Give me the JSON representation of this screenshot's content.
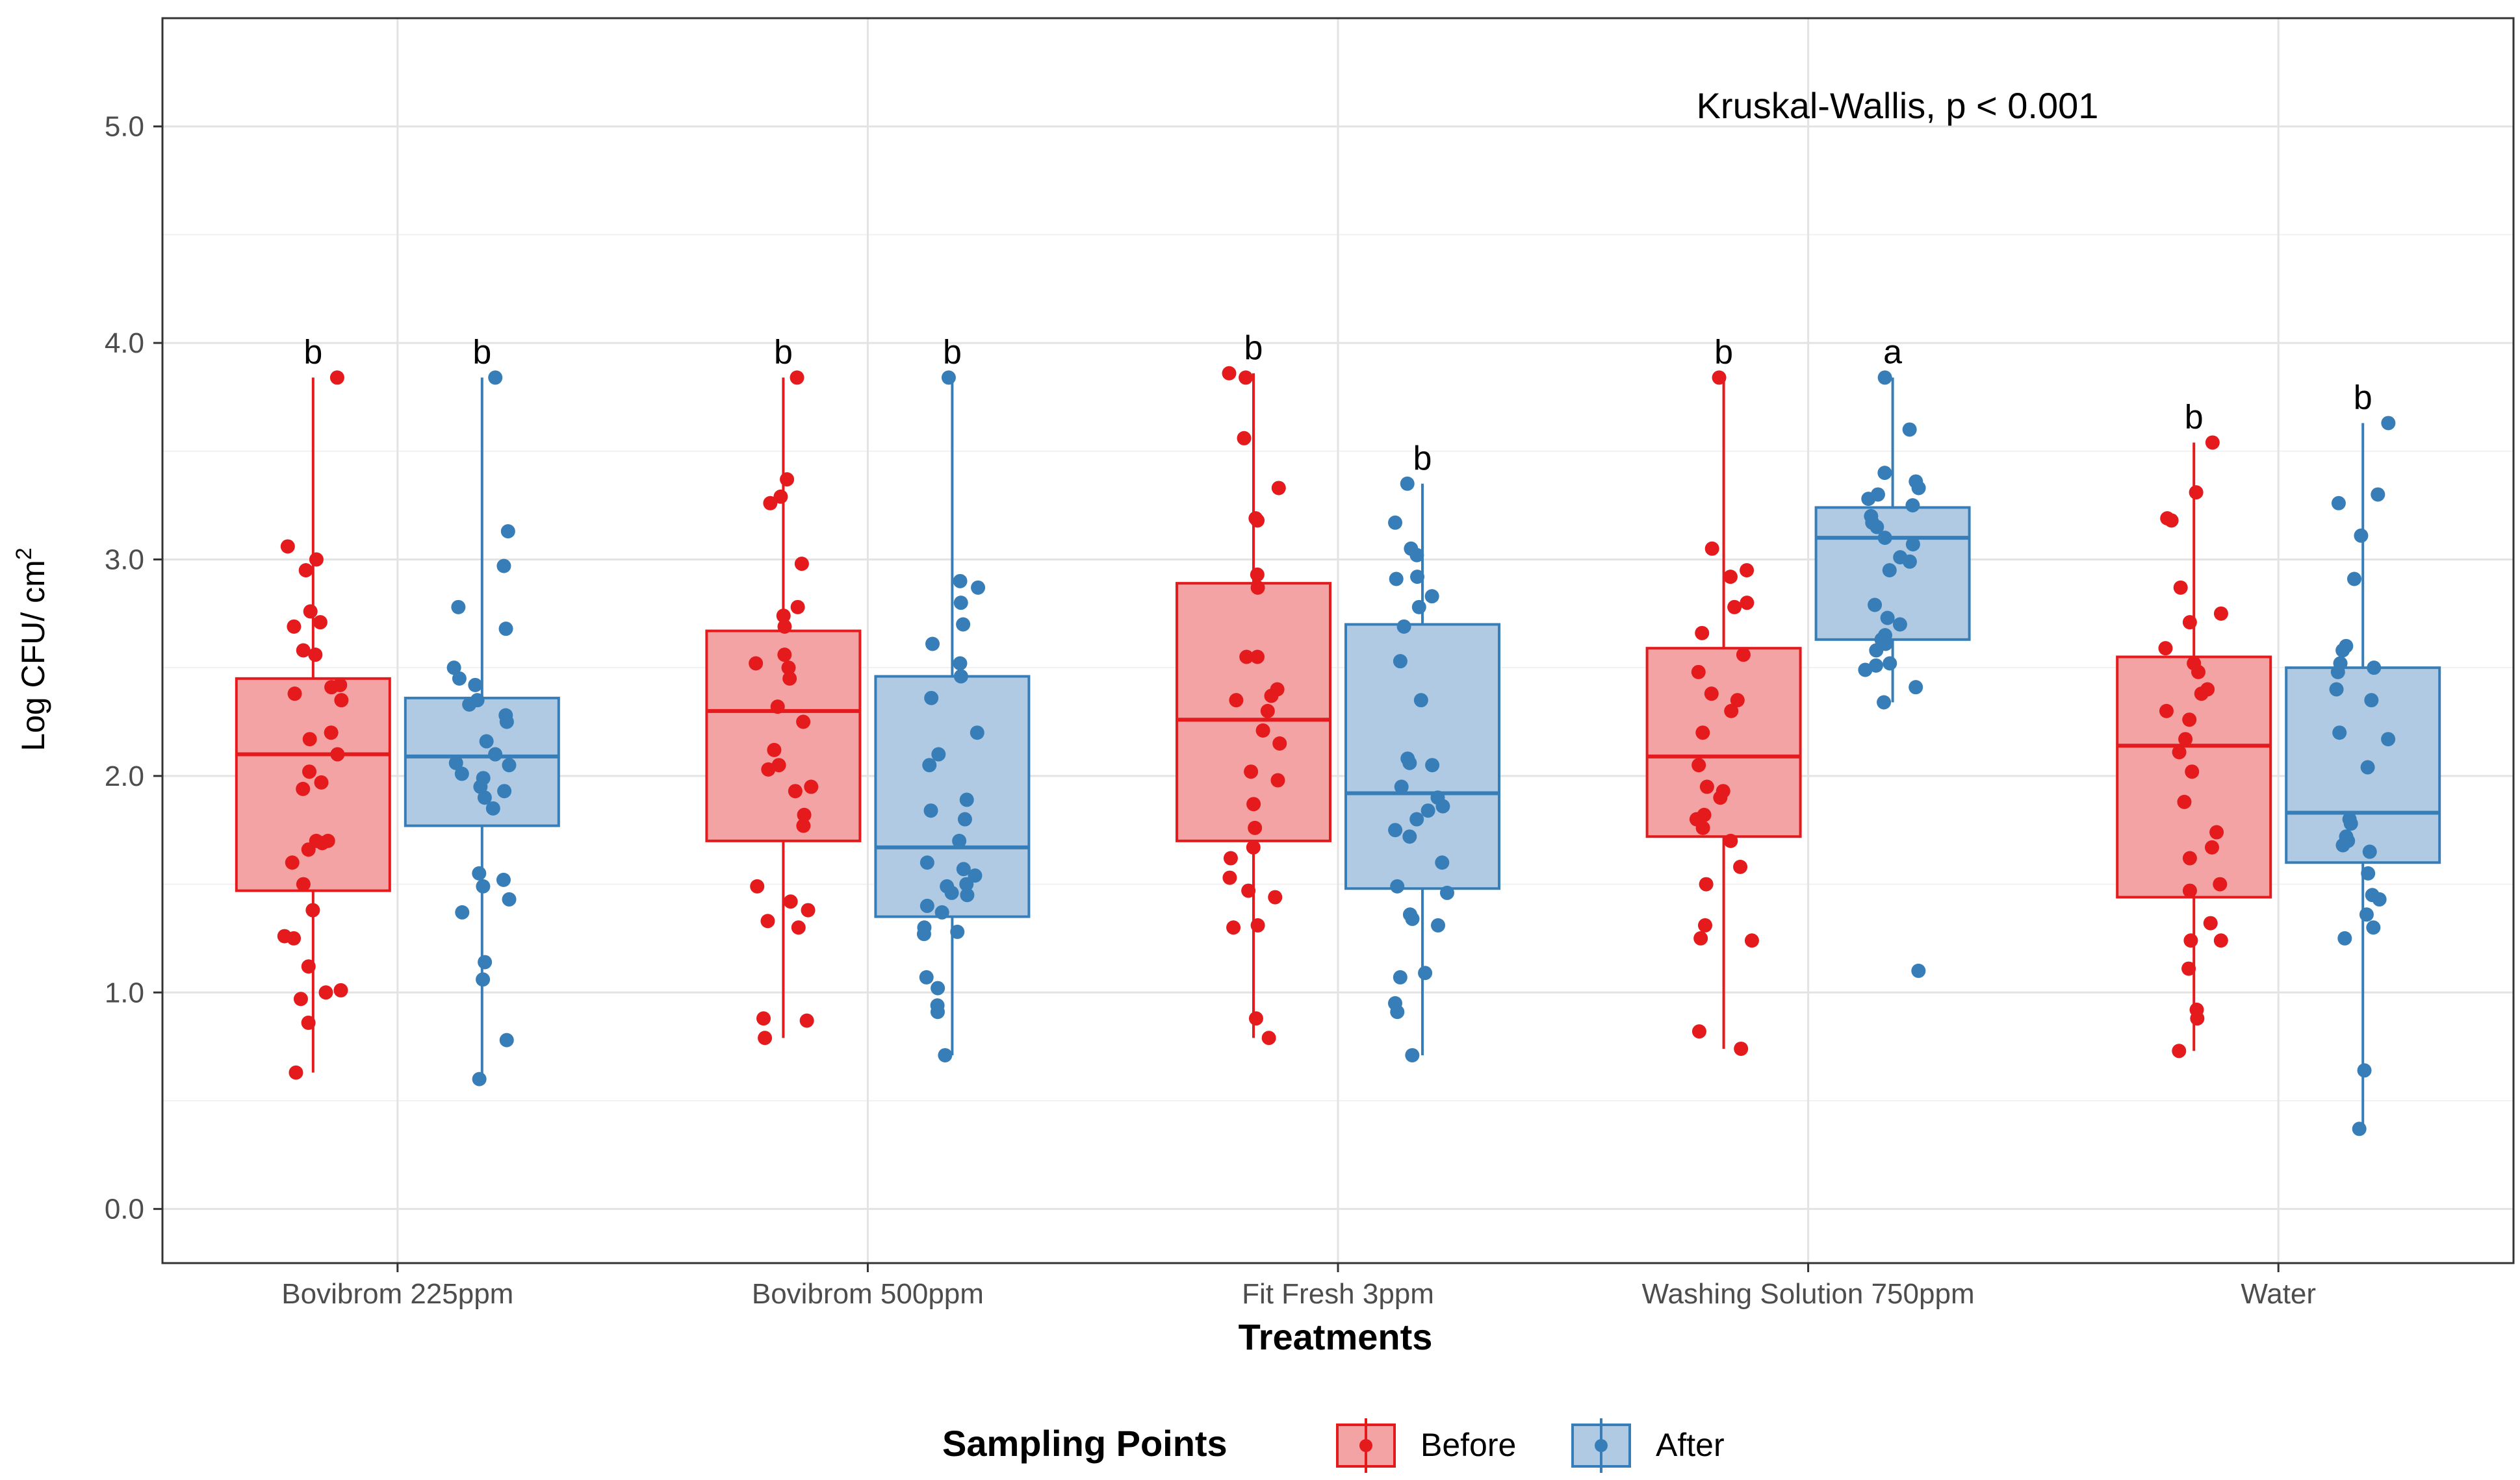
{
  "chart_data": {
    "type": "boxplot",
    "annotation": "Kruskal-Wallis, p < 0.001",
    "xlabel": "Treatments",
    "ylabel": "Log CFU/ cm",
    "ylabel_superscript": "2",
    "ylim": [
      -0.25,
      5.5
    ],
    "yticks": [
      {
        "value": 0,
        "label": "0.0"
      },
      {
        "value": 1,
        "label": "1.0"
      },
      {
        "value": 2,
        "label": "2.0"
      },
      {
        "value": 3,
        "label": "3.0"
      },
      {
        "value": 4,
        "label": "4.0"
      },
      {
        "value": 5,
        "label": "5.0"
      }
    ],
    "grid": true,
    "categories": [
      "Bovibrom 225ppm",
      "Bovibrom 500ppm",
      "Fit Fresh 3ppm",
      "Washing Solution 750ppm",
      "Water"
    ],
    "legend": {
      "title": "Sampling Points",
      "position": "bottom",
      "items": [
        {
          "label": "Before",
          "color": "#e41a1c",
          "fill": "#f4a3a4"
        },
        {
          "label": "After",
          "color": "#377eb8",
          "fill": "#afcae2"
        }
      ]
    },
    "series": [
      {
        "name": "Before",
        "color": "#e41a1c",
        "fill": "#f4a3a4",
        "boxes": [
          {
            "category": "Bovibrom 225ppm",
            "min": 0.63,
            "q1": 1.47,
            "median": 2.1,
            "q3": 2.45,
            "max": 3.84,
            "letter": "b",
            "points": [
              3.84,
              3.06,
              3.0,
              2.95,
              2.76,
              2.71,
              2.69,
              2.58,
              2.56,
              2.42,
              2.41,
              2.38,
              2.35,
              2.2,
              2.17,
              2.1,
              2.02,
              1.97,
              1.94,
              1.7,
              1.7,
              1.69,
              1.66,
              1.6,
              1.5,
              1.38,
              1.26,
              1.25,
              1.12,
              1.01,
              1.0,
              0.97,
              0.86,
              0.63
            ]
          },
          {
            "category": "Bovibrom 500ppm",
            "min": 0.79,
            "q1": 1.7,
            "median": 2.3,
            "q3": 2.67,
            "max": 3.84,
            "letter": "b",
            "points": [
              3.84,
              3.37,
              3.29,
              3.26,
              2.98,
              2.78,
              2.74,
              2.69,
              2.56,
              2.52,
              2.5,
              2.45,
              2.32,
              2.25,
              2.12,
              2.05,
              2.03,
              1.95,
              1.93,
              1.82,
              1.77,
              1.49,
              1.42,
              1.38,
              1.33,
              1.3,
              0.88,
              0.87,
              0.79
            ]
          },
          {
            "category": "Fit Fresh 3ppm",
            "min": 0.79,
            "q1": 1.7,
            "median": 2.26,
            "q3": 2.89,
            "max": 3.86,
            "letter": "b",
            "points": [
              3.86,
              3.84,
              3.56,
              3.33,
              3.19,
              3.18,
              2.93,
              2.87,
              2.55,
              2.55,
              2.4,
              2.37,
              2.35,
              2.3,
              2.21,
              2.15,
              2.02,
              1.98,
              1.87,
              1.76,
              1.67,
              1.62,
              1.53,
              1.47,
              1.44,
              1.31,
              1.3,
              0.88,
              0.79
            ]
          },
          {
            "category": "Washing Solution 750ppm",
            "min": 0.74,
            "q1": 1.72,
            "median": 2.09,
            "q3": 2.59,
            "max": 3.84,
            "letter": "b",
            "points": [
              3.84,
              3.05,
              2.95,
              2.92,
              2.8,
              2.78,
              2.66,
              2.56,
              2.48,
              2.38,
              2.35,
              2.3,
              2.2,
              2.05,
              1.95,
              1.93,
              1.9,
              1.82,
              1.8,
              1.76,
              1.7,
              1.58,
              1.5,
              1.31,
              1.25,
              1.24,
              0.82,
              0.74
            ]
          },
          {
            "category": "Water",
            "min": 0.73,
            "q1": 1.44,
            "median": 2.14,
            "q3": 2.55,
            "max": 3.54,
            "letter": "b",
            "points": [
              3.54,
              3.31,
              3.19,
              3.18,
              2.87,
              2.75,
              2.71,
              2.59,
              2.52,
              2.48,
              2.4,
              2.38,
              2.3,
              2.26,
              2.17,
              2.11,
              2.02,
              1.88,
              1.74,
              1.67,
              1.62,
              1.5,
              1.47,
              1.32,
              1.24,
              1.24,
              1.11,
              0.92,
              0.88,
              0.73
            ]
          }
        ]
      },
      {
        "name": "After",
        "color": "#377eb8",
        "fill": "#afcae2",
        "boxes": [
          {
            "category": "Bovibrom 225ppm",
            "min": 0.6,
            "q1": 1.77,
            "median": 2.09,
            "q3": 2.36,
            "max": 3.84,
            "letter": "b",
            "points": [
              3.84,
              3.13,
              2.97,
              2.78,
              2.68,
              2.5,
              2.45,
              2.42,
              2.35,
              2.33,
              2.28,
              2.25,
              2.16,
              2.1,
              2.06,
              2.05,
              2.01,
              1.99,
              1.95,
              1.93,
              1.9,
              1.85,
              1.55,
              1.52,
              1.49,
              1.43,
              1.37,
              1.14,
              1.06,
              0.78,
              0.6
            ]
          },
          {
            "category": "Bovibrom 500ppm",
            "min": 0.71,
            "q1": 1.35,
            "median": 1.67,
            "q3": 2.46,
            "max": 3.84,
            "letter": "b",
            "points": [
              3.84,
              2.9,
              2.87,
              2.8,
              2.7,
              2.61,
              2.52,
              2.46,
              2.36,
              2.2,
              2.1,
              2.05,
              1.89,
              1.84,
              1.8,
              1.7,
              1.6,
              1.57,
              1.54,
              1.5,
              1.49,
              1.46,
              1.45,
              1.4,
              1.37,
              1.3,
              1.28,
              1.27,
              1.07,
              1.02,
              0.94,
              0.91,
              0.71
            ]
          },
          {
            "category": "Fit Fresh 3ppm",
            "min": 0.71,
            "q1": 1.48,
            "median": 1.92,
            "q3": 2.7,
            "max": 3.35,
            "letter": "b",
            "points": [
              3.35,
              3.17,
              3.05,
              3.02,
              2.92,
              2.91,
              2.83,
              2.78,
              2.69,
              2.53,
              2.35,
              2.08,
              2.06,
              2.05,
              1.95,
              1.9,
              1.86,
              1.84,
              1.8,
              1.75,
              1.72,
              1.6,
              1.49,
              1.46,
              1.36,
              1.34,
              1.31,
              1.09,
              1.07,
              0.95,
              0.91,
              0.71
            ]
          },
          {
            "category": "Washing Solution 750ppm",
            "min": 2.34,
            "q1": 2.63,
            "median": 3.1,
            "q3": 3.24,
            "max": 3.84,
            "letter": "a",
            "points": [
              3.84,
              3.6,
              3.4,
              3.36,
              3.33,
              3.3,
              3.28,
              3.25,
              3.2,
              3.17,
              3.15,
              3.1,
              3.07,
              3.01,
              2.99,
              2.95,
              2.79,
              2.73,
              2.7,
              2.65,
              2.63,
              2.61,
              2.58,
              2.52,
              2.51,
              2.49,
              2.41,
              2.34,
              1.1
            ]
          },
          {
            "category": "Water",
            "min": 0.37,
            "q1": 1.6,
            "median": 1.83,
            "q3": 2.5,
            "max": 3.63,
            "letter": "b",
            "points": [
              3.63,
              3.3,
              3.26,
              3.11,
              2.91,
              2.6,
              2.58,
              2.52,
              2.5,
              2.48,
              2.4,
              2.35,
              2.2,
              2.17,
              2.04,
              1.8,
              1.78,
              1.72,
              1.7,
              1.68,
              1.65,
              1.55,
              1.45,
              1.43,
              1.36,
              1.3,
              1.25,
              0.64,
              0.37
            ]
          }
        ]
      }
    ]
  }
}
